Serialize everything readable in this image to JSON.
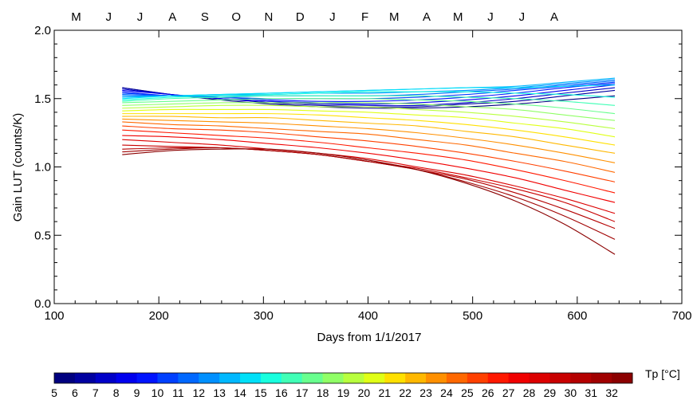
{
  "chart_data": {
    "type": "line",
    "xlabel": "Days from 1/1/2017",
    "ylabel": "Gain LUT (counts/K)",
    "xlim": [
      100,
      700
    ],
    "ylim": [
      0.0,
      2.0
    ],
    "x_ticks": [
      100,
      200,
      300,
      400,
      500,
      600,
      700
    ],
    "x_tick_labels": [
      "100",
      "200",
      "300",
      "400",
      "500",
      "600",
      "700"
    ],
    "y_ticks": [
      0.0,
      0.5,
      1.0,
      1.5,
      2.0
    ],
    "y_tick_labels": [
      "0.0",
      "0.5",
      "1.0",
      "1.5",
      "2.0"
    ],
    "top_axis": {
      "labels": [
        "M",
        "J",
        "J",
        "A",
        "S",
        "O",
        "N",
        "D",
        "J",
        "F",
        "M",
        "A",
        "M",
        "J",
        "J",
        "A"
      ],
      "days": [
        121,
        152,
        182,
        213,
        244,
        274,
        305,
        335,
        366,
        397,
        425,
        456,
        486,
        517,
        547,
        578
      ]
    },
    "x": [
      165,
      212,
      259,
      306,
      353,
      400,
      447,
      494,
      541,
      588,
      636
    ],
    "series": [
      {
        "temperature": 5,
        "color": "#00007f",
        "values": [
          1.58,
          1.53,
          1.49,
          1.46,
          1.44,
          1.43,
          1.43,
          1.44,
          1.46,
          1.49,
          1.52
        ]
      },
      {
        "temperature": 6,
        "color": "#0000a0",
        "values": [
          1.58,
          1.53,
          1.5,
          1.47,
          1.45,
          1.44,
          1.44,
          1.46,
          1.48,
          1.52,
          1.56
        ]
      },
      {
        "temperature": 7,
        "color": "#0000c8",
        "values": [
          1.57,
          1.53,
          1.5,
          1.48,
          1.46,
          1.45,
          1.45,
          1.47,
          1.5,
          1.54,
          1.58
        ]
      },
      {
        "temperature": 8,
        "color": "#0000ee",
        "values": [
          1.56,
          1.53,
          1.5,
          1.48,
          1.47,
          1.46,
          1.47,
          1.49,
          1.52,
          1.56,
          1.6
        ]
      },
      {
        "temperature": 9,
        "color": "#0014ff",
        "values": [
          1.55,
          1.52,
          1.51,
          1.49,
          1.48,
          1.48,
          1.49,
          1.51,
          1.54,
          1.58,
          1.61
        ]
      },
      {
        "temperature": 10,
        "color": "#0040ff",
        "values": [
          1.54,
          1.52,
          1.51,
          1.5,
          1.5,
          1.5,
          1.51,
          1.53,
          1.56,
          1.59,
          1.62
        ]
      },
      {
        "temperature": 11,
        "color": "#0068ff",
        "values": [
          1.53,
          1.52,
          1.52,
          1.52,
          1.52,
          1.52,
          1.53,
          1.55,
          1.57,
          1.6,
          1.63
        ]
      },
      {
        "temperature": 12,
        "color": "#0090ff",
        "values": [
          1.52,
          1.52,
          1.53,
          1.53,
          1.54,
          1.54,
          1.55,
          1.56,
          1.58,
          1.61,
          1.64
        ]
      },
      {
        "temperature": 13,
        "color": "#00b8ff",
        "values": [
          1.51,
          1.52,
          1.53,
          1.54,
          1.55,
          1.56,
          1.57,
          1.58,
          1.59,
          1.62,
          1.65
        ]
      },
      {
        "temperature": 14,
        "color": "#00e0f8",
        "values": [
          1.5,
          1.52,
          1.53,
          1.54,
          1.55,
          1.56,
          1.57,
          1.58,
          1.58,
          1.59,
          1.6
        ]
      },
      {
        "temperature": 15,
        "color": "#18ffde",
        "values": [
          1.49,
          1.51,
          1.52,
          1.53,
          1.54,
          1.55,
          1.55,
          1.55,
          1.54,
          1.53,
          1.51
        ]
      },
      {
        "temperature": 16,
        "color": "#40ffb6",
        "values": [
          1.48,
          1.5,
          1.51,
          1.52,
          1.52,
          1.52,
          1.52,
          1.51,
          1.5,
          1.48,
          1.45
        ]
      },
      {
        "temperature": 17,
        "color": "#68ff8e",
        "values": [
          1.47,
          1.48,
          1.49,
          1.5,
          1.5,
          1.5,
          1.49,
          1.48,
          1.46,
          1.43,
          1.39
        ]
      },
      {
        "temperature": 18,
        "color": "#90ff66",
        "values": [
          1.45,
          1.46,
          1.47,
          1.47,
          1.47,
          1.47,
          1.46,
          1.44,
          1.42,
          1.38,
          1.34
        ]
      },
      {
        "temperature": 19,
        "color": "#b8ff3e",
        "values": [
          1.43,
          1.44,
          1.45,
          1.45,
          1.44,
          1.44,
          1.42,
          1.4,
          1.37,
          1.33,
          1.28
        ]
      },
      {
        "temperature": 20,
        "color": "#e0ff16",
        "values": [
          1.41,
          1.42,
          1.42,
          1.42,
          1.41,
          1.4,
          1.38,
          1.36,
          1.32,
          1.28,
          1.22
        ]
      },
      {
        "temperature": 21,
        "color": "#ffe000",
        "values": [
          1.39,
          1.39,
          1.39,
          1.39,
          1.38,
          1.36,
          1.34,
          1.31,
          1.27,
          1.22,
          1.16
        ]
      },
      {
        "temperature": 22,
        "color": "#ffb800",
        "values": [
          1.37,
          1.37,
          1.36,
          1.36,
          1.34,
          1.32,
          1.3,
          1.26,
          1.22,
          1.16,
          1.1
        ]
      },
      {
        "temperature": 23,
        "color": "#ff9000",
        "values": [
          1.35,
          1.34,
          1.33,
          1.32,
          1.3,
          1.28,
          1.25,
          1.21,
          1.16,
          1.1,
          1.03
        ]
      },
      {
        "temperature": 24,
        "color": "#ff6800",
        "values": [
          1.33,
          1.31,
          1.3,
          1.28,
          1.26,
          1.24,
          1.2,
          1.16,
          1.1,
          1.04,
          0.96
        ]
      },
      {
        "temperature": 25,
        "color": "#ff4000",
        "values": [
          1.3,
          1.28,
          1.27,
          1.25,
          1.22,
          1.19,
          1.15,
          1.1,
          1.04,
          0.97,
          0.89
        ]
      },
      {
        "temperature": 26,
        "color": "#ff1800",
        "values": [
          1.27,
          1.25,
          1.23,
          1.21,
          1.18,
          1.14,
          1.1,
          1.05,
          0.98,
          0.9,
          0.81
        ]
      },
      {
        "temperature": 27,
        "color": "#f00000",
        "values": [
          1.23,
          1.22,
          1.2,
          1.17,
          1.14,
          1.1,
          1.05,
          0.99,
          0.92,
          0.83,
          0.74
        ]
      },
      {
        "temperature": 28,
        "color": "#dc0000",
        "values": [
          1.2,
          1.18,
          1.16,
          1.13,
          1.1,
          1.06,
          1.0,
          0.94,
          0.86,
          0.77,
          0.66
        ]
      },
      {
        "temperature": 29,
        "color": "#c80000",
        "values": [
          1.16,
          1.15,
          1.14,
          1.12,
          1.09,
          1.04,
          0.99,
          0.92,
          0.84,
          0.74,
          0.6
        ]
      },
      {
        "temperature": 30,
        "color": "#b40000",
        "values": [
          1.13,
          1.14,
          1.14,
          1.12,
          1.09,
          1.04,
          0.98,
          0.91,
          0.81,
          0.69,
          0.55
        ]
      },
      {
        "temperature": 31,
        "color": "#a00000",
        "values": [
          1.11,
          1.13,
          1.14,
          1.12,
          1.09,
          1.04,
          0.98,
          0.89,
          0.78,
          0.64,
          0.47
        ]
      },
      {
        "temperature": 32,
        "color": "#8b0000",
        "values": [
          1.09,
          1.12,
          1.13,
          1.13,
          1.1,
          1.05,
          0.98,
          0.88,
          0.75,
          0.58,
          0.36
        ]
      }
    ],
    "colorbar": {
      "title": "Tp [°C]",
      "labels": [
        "5",
        "6",
        "7",
        "8",
        "9",
        "10",
        "11",
        "12",
        "13",
        "14",
        "15",
        "16",
        "17",
        "18",
        "19",
        "20",
        "21",
        "22",
        "23",
        "24",
        "25",
        "26",
        "27",
        "28",
        "29",
        "30",
        "31",
        "32"
      ],
      "colors": [
        "#00007f",
        "#0000a0",
        "#0000c8",
        "#0000ee",
        "#0014ff",
        "#0040ff",
        "#0068ff",
        "#0090ff",
        "#00b8ff",
        "#00e0f8",
        "#18ffde",
        "#40ffb6",
        "#68ff8e",
        "#90ff66",
        "#b8ff3e",
        "#e0ff16",
        "#ffe000",
        "#ffb800",
        "#ff9000",
        "#ff6800",
        "#ff4000",
        "#ff1800",
        "#f00000",
        "#dc0000",
        "#c80000",
        "#b40000",
        "#a00000",
        "#8b0000"
      ]
    },
    "grid": false,
    "legend": "colorbar-bottom"
  }
}
